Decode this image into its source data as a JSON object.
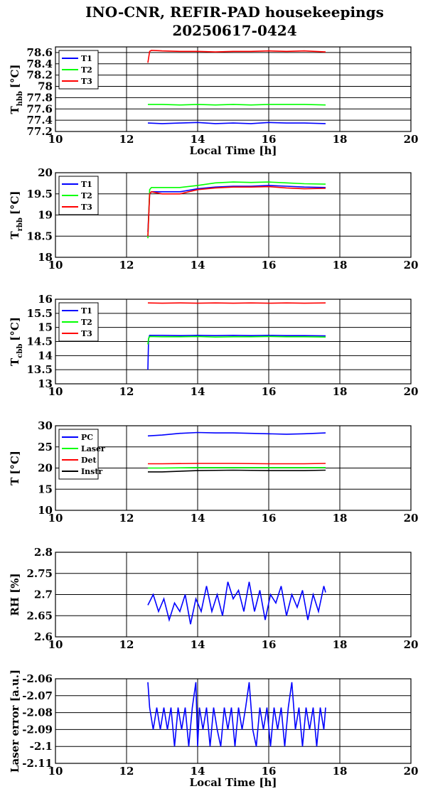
{
  "title_line1": "INO-CNR, REFIR-PAD housekeepings",
  "title_line2": "20250617-0424",
  "chart_data": [
    {
      "type": "line",
      "ylabel_main": "T",
      "ylabel_sub": "hbb",
      "ylabel_unit": "[°C]",
      "xlabel": "Local Time [h]",
      "xlim": [
        10,
        20
      ],
      "ylim": [
        77.2,
        78.7
      ],
      "xticks": [
        "10",
        "12",
        "14",
        "16",
        "18",
        "20"
      ],
      "yticks": [
        77.2,
        77.4,
        77.6,
        77.8,
        78,
        78.2,
        78.4,
        78.6
      ],
      "ytick_labels": [
        "77.2",
        "77.4",
        "77.6",
        "77.8",
        "78",
        "78.2",
        "78.4",
        "78.6"
      ],
      "grid": true,
      "legend": "top-left",
      "series": [
        {
          "name": "T1",
          "color": "#0000ff",
          "x": [
            12.6,
            13,
            13.5,
            14,
            14.5,
            15,
            15.5,
            16,
            16.5,
            17,
            17.6
          ],
          "y": [
            77.35,
            77.34,
            77.35,
            77.36,
            77.34,
            77.35,
            77.34,
            77.36,
            77.35,
            77.35,
            77.34
          ]
        },
        {
          "name": "T2",
          "color": "#00ff00",
          "x": [
            12.6,
            13,
            13.5,
            14,
            14.5,
            15,
            15.5,
            16,
            16.5,
            17,
            17.6
          ],
          "y": [
            77.68,
            77.68,
            77.67,
            77.68,
            77.67,
            77.68,
            77.67,
            77.68,
            77.68,
            77.68,
            77.67
          ]
        },
        {
          "name": "T3",
          "color": "#ff0000",
          "x": [
            12.6,
            12.65,
            12.7,
            13,
            13.5,
            14,
            14.5,
            15,
            15.5,
            16,
            16.5,
            17,
            17.6
          ],
          "y": [
            78.42,
            78.62,
            78.64,
            78.63,
            78.62,
            78.62,
            78.61,
            78.62,
            78.62,
            78.63,
            78.62,
            78.63,
            78.61
          ]
        }
      ]
    },
    {
      "type": "line",
      "ylabel_main": "T",
      "ylabel_sub": "rbb",
      "ylabel_unit": "[°C]",
      "xlabel": "",
      "xlim": [
        10,
        20
      ],
      "ylim": [
        18,
        20
      ],
      "xticks": [
        "10",
        "12",
        "14",
        "16",
        "18",
        "20"
      ],
      "yticks": [
        18,
        18.5,
        19,
        19.5,
        20
      ],
      "ytick_labels": [
        "18",
        "18.5",
        "19",
        "19.5",
        "20"
      ],
      "grid": true,
      "legend": "top-left",
      "series": [
        {
          "name": "T1",
          "color": "#0000ff",
          "x": [
            12.6,
            12.65,
            12.7,
            13,
            13.5,
            14,
            14.5,
            15,
            15.5,
            16,
            16.5,
            17,
            17.6
          ],
          "y": [
            18.6,
            19.5,
            19.55,
            19.55,
            19.55,
            19.62,
            19.66,
            19.68,
            19.68,
            19.7,
            19.68,
            19.66,
            19.65
          ]
        },
        {
          "name": "T2",
          "color": "#00ff00",
          "x": [
            12.6,
            12.65,
            12.7,
            13,
            13.5,
            14,
            14.5,
            15,
            15.5,
            16,
            16.5,
            17,
            17.6
          ],
          "y": [
            18.45,
            19.6,
            19.65,
            19.65,
            19.65,
            19.7,
            19.76,
            19.78,
            19.77,
            19.78,
            19.76,
            19.74,
            19.73
          ]
        },
        {
          "name": "T3",
          "color": "#ff0000",
          "x": [
            12.6,
            12.65,
            12.7,
            13,
            13.5,
            14,
            14.5,
            15,
            15.5,
            16,
            16.5,
            17,
            17.6
          ],
          "y": [
            18.5,
            19.5,
            19.55,
            19.5,
            19.5,
            19.6,
            19.64,
            19.66,
            19.66,
            19.67,
            19.64,
            19.62,
            19.63
          ]
        }
      ]
    },
    {
      "type": "line",
      "ylabel_main": "T",
      "ylabel_sub": "cbb",
      "ylabel_unit": "[°C]",
      "xlabel": "",
      "xlim": [
        10,
        20
      ],
      "ylim": [
        13,
        16
      ],
      "xticks": [
        "10",
        "12",
        "14",
        "16",
        "18",
        "20"
      ],
      "yticks": [
        13,
        13.5,
        14,
        14.5,
        15,
        15.5,
        16
      ],
      "ytick_labels": [
        "13",
        "13.5",
        "14",
        "14.5",
        "15",
        "15.5",
        "16"
      ],
      "grid": true,
      "legend": "top-left",
      "series": [
        {
          "name": "T1",
          "color": "#0000ff",
          "x": [
            12.6,
            12.62,
            12.65,
            13,
            13.5,
            14,
            14.5,
            15,
            15.5,
            16,
            16.5,
            17,
            17.6
          ],
          "y": [
            13.5,
            14.6,
            14.72,
            14.72,
            14.71,
            14.72,
            14.71,
            14.72,
            14.71,
            14.72,
            14.71,
            14.71,
            14.7
          ]
        },
        {
          "name": "T2",
          "color": "#00ff00",
          "x": [
            12.6,
            12.62,
            12.65,
            13,
            13.5,
            14,
            14.5,
            15,
            15.5,
            16,
            16.5,
            17,
            17.6
          ],
          "y": [
            14.4,
            14.6,
            14.68,
            14.67,
            14.67,
            14.68,
            14.66,
            14.67,
            14.67,
            14.68,
            14.67,
            14.67,
            14.66
          ]
        },
        {
          "name": "T3",
          "color": "#ff0000",
          "x": [
            12.6,
            13,
            13.5,
            14,
            14.5,
            15,
            15.5,
            16,
            16.5,
            17,
            17.6
          ],
          "y": [
            15.87,
            15.86,
            15.87,
            15.86,
            15.87,
            15.86,
            15.87,
            15.86,
            15.87,
            15.86,
            15.87
          ]
        }
      ]
    },
    {
      "type": "line",
      "ylabel_main": "T",
      "ylabel_sub": "",
      "ylabel_unit": "[°C]",
      "xlabel": "",
      "xlim": [
        10,
        20
      ],
      "ylim": [
        10,
        30
      ],
      "xticks": [
        "10",
        "12",
        "14",
        "16",
        "18",
        "20"
      ],
      "yticks": [
        10,
        15,
        20,
        25,
        30
      ],
      "ytick_labels": [
        "10",
        "15",
        "20",
        "25",
        "30"
      ],
      "grid": true,
      "legend": "top-left",
      "series": [
        {
          "name": "PC",
          "color": "#0000ff",
          "x": [
            12.6,
            13,
            13.5,
            14,
            14.5,
            15,
            15.5,
            16,
            16.5,
            17,
            17.6
          ],
          "y": [
            27.6,
            27.8,
            28.2,
            28.4,
            28.3,
            28.3,
            28.2,
            28.1,
            28.0,
            28.1,
            28.3
          ]
        },
        {
          "name": "Laser",
          "color": "#00ff00",
          "x": [
            12.6,
            13,
            14,
            15,
            16,
            17,
            17.6
          ],
          "y": [
            20.0,
            20.0,
            20.1,
            20.1,
            20.1,
            20.1,
            20.1
          ]
        },
        {
          "name": "Det",
          "color": "#ff0000",
          "x": [
            12.6,
            13,
            14,
            15,
            16,
            17,
            17.6
          ],
          "y": [
            21.0,
            21.0,
            21.1,
            21.1,
            21.0,
            21.0,
            21.1
          ]
        },
        {
          "name": "Instr",
          "color": "#000000",
          "x": [
            12.6,
            13,
            14,
            15,
            16,
            17,
            17.6
          ],
          "y": [
            19.1,
            19.1,
            19.4,
            19.5,
            19.4,
            19.4,
            19.5
          ]
        }
      ]
    },
    {
      "type": "line",
      "ylabel_main": "RH [%]",
      "ylabel_sub": "",
      "ylabel_unit": "",
      "xlabel": "",
      "xlim": [
        10,
        20
      ],
      "ylim": [
        2.6,
        2.8
      ],
      "xticks": [
        "10",
        "12",
        "14",
        "16",
        "18",
        "20"
      ],
      "yticks": [
        2.6,
        2.65,
        2.7,
        2.75,
        2.8
      ],
      "ytick_labels": [
        "2.6",
        "2.65",
        "2.7",
        "2.75",
        "2.8"
      ],
      "grid": true,
      "legend": "none",
      "series": [
        {
          "name": "",
          "color": "#0000ff",
          "x": [
            12.6,
            12.75,
            12.9,
            13.05,
            13.2,
            13.35,
            13.5,
            13.65,
            13.8,
            13.95,
            14.1,
            14.25,
            14.4,
            14.55,
            14.7,
            14.85,
            15.0,
            15.15,
            15.3,
            15.45,
            15.6,
            15.75,
            15.9,
            16.05,
            16.2,
            16.35,
            16.5,
            16.65,
            16.8,
            16.95,
            17.1,
            17.25,
            17.4,
            17.55,
            17.6
          ],
          "y": [
            2.675,
            2.7,
            2.66,
            2.69,
            2.64,
            2.68,
            2.66,
            2.7,
            2.63,
            2.69,
            2.66,
            2.72,
            2.66,
            2.7,
            2.65,
            2.73,
            2.69,
            2.71,
            2.66,
            2.73,
            2.66,
            2.71,
            2.64,
            2.7,
            2.68,
            2.72,
            2.65,
            2.7,
            2.67,
            2.71,
            2.64,
            2.7,
            2.66,
            2.72,
            2.705
          ]
        }
      ]
    },
    {
      "type": "line",
      "ylabel_main": "Laser error [a.u.]",
      "ylabel_sub": "",
      "ylabel_unit": "",
      "xlabel": "Local Time [h]",
      "xlim": [
        10,
        20
      ],
      "ylim": [
        -2.11,
        -2.06
      ],
      "xticks": [
        "10",
        "12",
        "14",
        "16",
        "18",
        "20"
      ],
      "yticks": [
        -2.11,
        -2.1,
        -2.09,
        -2.08,
        -2.07,
        -2.06
      ],
      "ytick_labels": [
        "-2.11",
        "-2.1",
        "-2.09",
        "-2.08",
        "-2.07",
        "-2.06"
      ],
      "grid": true,
      "legend": "none",
      "series": [
        {
          "name": "",
          "color": "#0000ff",
          "x": [
            12.6,
            12.65,
            12.75,
            12.85,
            12.95,
            13.05,
            13.15,
            13.25,
            13.35,
            13.45,
            13.55,
            13.65,
            13.75,
            13.85,
            13.95,
            14.0,
            14.05,
            14.15,
            14.25,
            14.35,
            14.45,
            14.55,
            14.65,
            14.75,
            14.85,
            14.95,
            15.05,
            15.15,
            15.25,
            15.35,
            15.45,
            15.55,
            15.65,
            15.75,
            15.85,
            15.95,
            16.05,
            16.15,
            16.25,
            16.35,
            16.45,
            16.55,
            16.65,
            16.75,
            16.85,
            16.95,
            17.05,
            17.15,
            17.25,
            17.35,
            17.45,
            17.55,
            17.6
          ],
          "y": [
            -2.062,
            -2.077,
            -2.09,
            -2.077,
            -2.09,
            -2.077,
            -2.09,
            -2.077,
            -2.1,
            -2.077,
            -2.09,
            -2.077,
            -2.1,
            -2.077,
            -2.062,
            -2.1,
            -2.077,
            -2.09,
            -2.077,
            -2.1,
            -2.077,
            -2.09,
            -2.1,
            -2.077,
            -2.09,
            -2.077,
            -2.1,
            -2.077,
            -2.09,
            -2.077,
            -2.062,
            -2.09,
            -2.1,
            -2.077,
            -2.09,
            -2.077,
            -2.1,
            -2.077,
            -2.09,
            -2.077,
            -2.1,
            -2.077,
            -2.062,
            -2.09,
            -2.077,
            -2.1,
            -2.077,
            -2.09,
            -2.077,
            -2.1,
            -2.077,
            -2.09,
            -2.077
          ]
        }
      ]
    }
  ]
}
